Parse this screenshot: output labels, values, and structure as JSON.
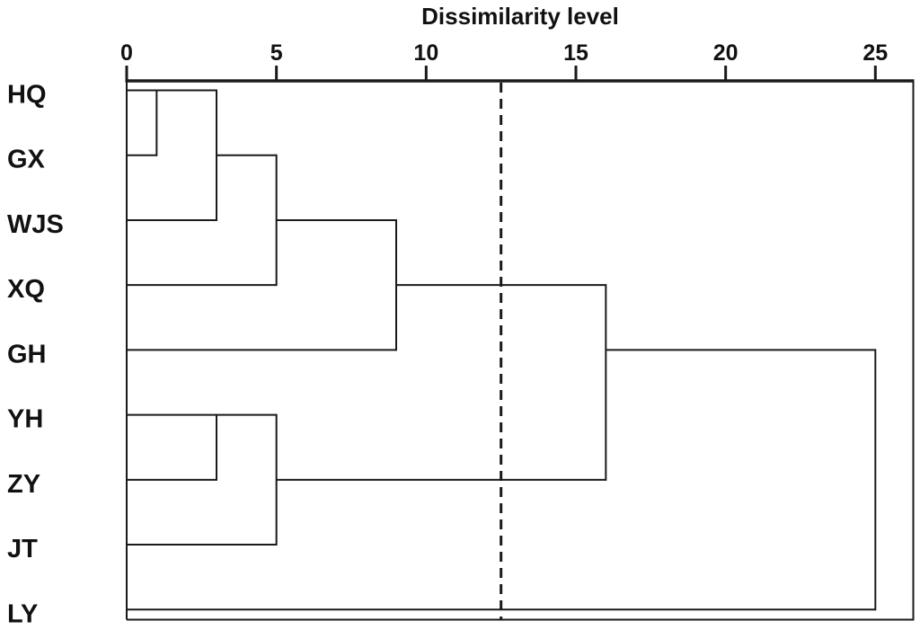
{
  "chart_data": {
    "type": "dendrogram",
    "orientation": "horizontal",
    "title": "Dissimilarity level",
    "axis": {
      "label": "Dissimilarity level",
      "position": "top",
      "min": 0,
      "max": 26.3,
      "ticks": [
        "0",
        "5",
        "10",
        "15",
        "20",
        "25"
      ],
      "tick_values": [
        0,
        5,
        10,
        15,
        20,
        25
      ]
    },
    "leaves": [
      "HQ",
      "GX",
      "WJS",
      "XQ",
      "GH",
      "YH",
      "ZY",
      "JT",
      "LY"
    ],
    "merges": [
      {
        "name": "M0",
        "children": [
          "HQ",
          "GX"
        ],
        "height": 1,
        "out_row": 0
      },
      {
        "name": "M1",
        "children": [
          "M0",
          "WJS"
        ],
        "height": 3,
        "out_row": 1
      },
      {
        "name": "M2",
        "children": [
          "M1",
          "XQ"
        ],
        "height": 5,
        "out_row": 2
      },
      {
        "name": "M3",
        "children": [
          "M2",
          "GH"
        ],
        "height": 9,
        "out_row": 3
      },
      {
        "name": "M4",
        "children": [
          "YH",
          "ZY"
        ],
        "height": 3,
        "out_row": 5
      },
      {
        "name": "M5",
        "children": [
          "M4",
          "JT"
        ],
        "height": 5,
        "out_row": 6
      },
      {
        "name": "M6",
        "children": [
          "M3",
          "M5"
        ],
        "height": 16,
        "out_row": 4
      },
      {
        "name": "M7",
        "children": [
          "M6",
          "LY"
        ],
        "height": 25,
        "out_row": null
      }
    ],
    "cutline": {
      "value": 12.5,
      "style": "dashed"
    },
    "colors": {
      "line": "#1a1a1a",
      "background": "#ffffff"
    },
    "layout": {
      "grid": false,
      "frame": true,
      "legend": false
    }
  }
}
